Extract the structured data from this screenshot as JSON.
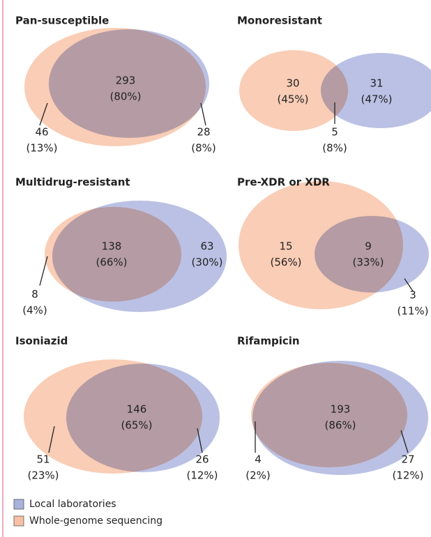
{
  "panels": [
    {
      "title": "Pan-susceptible",
      "regions": [
        {
          "count": "293",
          "percent": "(80%)"
        },
        {
          "count": "46",
          "percent": "(13%)"
        },
        {
          "count": "28",
          "percent": "(8%)"
        }
      ]
    },
    {
      "title": "Monoresistant",
      "regions": [
        {
          "count": "30",
          "percent": "(45%)"
        },
        {
          "count": "31",
          "percent": "(47%)"
        },
        {
          "count": "5",
          "percent": "(8%)"
        }
      ]
    },
    {
      "title": "Multidrug-resistant",
      "regions": [
        {
          "count": "138",
          "percent": "(66%)"
        },
        {
          "count": "63",
          "percent": "(30%)"
        },
        {
          "count": "8",
          "percent": "(4%)"
        }
      ]
    },
    {
      "title": "Pre-XDR or XDR",
      "regions": [
        {
          "count": "15",
          "percent": "(56%)"
        },
        {
          "count": "9",
          "percent": "(33%)"
        },
        {
          "count": "3",
          "percent": "(11%)"
        }
      ]
    },
    {
      "title": "Isoniazid",
      "regions": [
        {
          "count": "146",
          "percent": "(65%)"
        },
        {
          "count": "51",
          "percent": "(23%)"
        },
        {
          "count": "26",
          "percent": "(12%)"
        }
      ]
    },
    {
      "title": "Rifampicin",
      "regions": [
        {
          "count": "193",
          "percent": "(86%)"
        },
        {
          "count": "4",
          "percent": "(2%)"
        },
        {
          "count": "27",
          "percent": "(12%)"
        }
      ]
    }
  ],
  "legend": [
    {
      "label": "Local laboratories",
      "color": "#a9b1dd"
    },
    {
      "label": "Whole-genome sequencing",
      "color": "#f8c1a4"
    }
  ]
}
